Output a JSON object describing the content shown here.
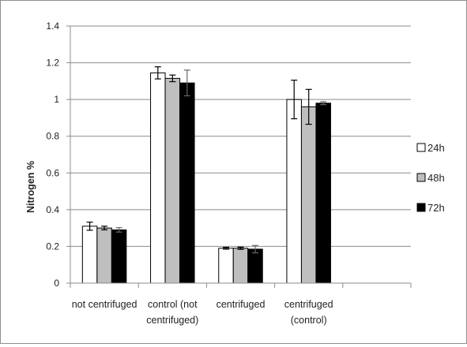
{
  "chart_data": {
    "type": "bar",
    "title": "",
    "xlabel": "",
    "ylabel": "Nitrogen %",
    "ylim": [
      0,
      1.4
    ],
    "yticks": [
      "0",
      "0.2",
      "0.4",
      "0.6",
      "0.8",
      "1",
      "1.2",
      "1.4"
    ],
    "grid": true,
    "legend_position": "right",
    "categories": [
      [
        "not centrifuged"
      ],
      [
        "control (not",
        "centrifuged)"
      ],
      [
        "centrifuged"
      ],
      [
        "centrifuged",
        "(control)"
      ]
    ],
    "series": [
      {
        "name": "24h",
        "color": "#ffffff",
        "values": [
          0.31,
          1.145,
          0.19,
          1.0
        ],
        "errors": [
          0.022,
          0.033,
          0.005,
          0.105
        ]
      },
      {
        "name": "48h",
        "color": "#bfbfbf",
        "values": [
          0.3,
          1.115,
          0.19,
          0.96
        ],
        "errors": [
          0.01,
          0.018,
          0.006,
          0.095
        ]
      },
      {
        "name": "72h",
        "color": "#000000",
        "values": [
          0.29,
          1.09,
          0.185,
          0.98
        ],
        "errors": [
          0.012,
          0.07,
          0.02,
          0.008
        ]
      }
    ]
  }
}
